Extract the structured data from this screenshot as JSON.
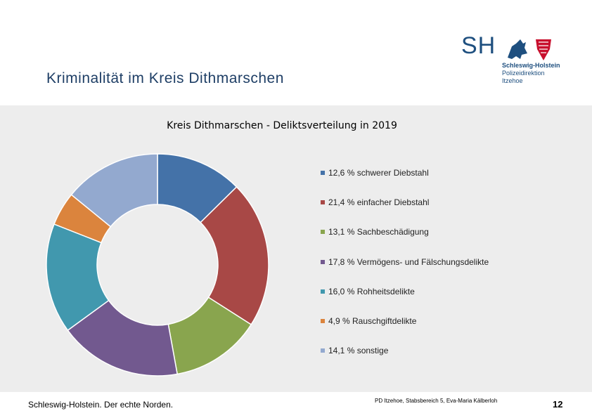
{
  "header": {
    "title": "Kriminalität im Kreis Dithmarschen"
  },
  "logo": {
    "mark": "SH",
    "line1": "Schleswig-Holstein",
    "line2": "Polizeidirektion",
    "line3": "Itzehoe"
  },
  "chart_data": {
    "type": "pie",
    "title": "Kreis Dithmarschen - Deliktsverteilung in 2019",
    "donut": true,
    "legend_position": "right",
    "categories": [
      "schwerer Diebstahl",
      "einfacher Diebstahl",
      "Sachbeschädigung",
      "Vermögens- und Fälschungsdelikte",
      "Rohheitsdelikte",
      "Rauschgiftdelikte",
      "sonstige"
    ],
    "values": [
      12.6,
      21.4,
      13.1,
      17.8,
      16.0,
      4.9,
      14.1
    ],
    "legend_labels": [
      "12,6 % schwerer Diebstahl",
      "21,4 % einfacher Diebstahl",
      "13,1 % Sachbeschädigung",
      "17,8 % Vermögens- und Fälschungsdelikte",
      "16,0 % Rohheitsdelikte",
      "4,9 % Rauschgiftdelikte",
      "14,1 % sonstige"
    ],
    "colors": [
      "#4472a8",
      "#a84846",
      "#89a54e",
      "#72598f",
      "#4198ae",
      "#db843d",
      "#93a9cf"
    ]
  },
  "footer": {
    "brand": "Schleswig-Holstein.",
    "slogan": " Der echte Norden.",
    "credit": "PD Itzehoe, Stabsbereich 5, Eva-Maria Kälberloh",
    "page_number": "12"
  }
}
